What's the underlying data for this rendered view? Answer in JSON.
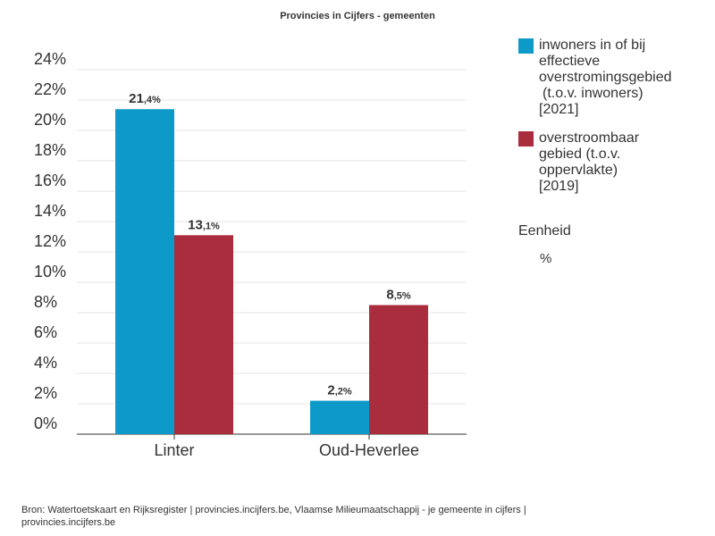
{
  "chart_data": {
    "type": "bar",
    "title": "Provincies in Cijfers - gemeenten",
    "categories": [
      "Linter",
      "Oud-Heverlee"
    ],
    "series": [
      {
        "name": "inwoners in of bij effectieve overstromingsgebied (t.o.v. inwoners) [2021]",
        "values": [
          21.4,
          2.2
        ],
        "labels": [
          "21,4%",
          "2,2%"
        ],
        "color": "#0e9ac9"
      },
      {
        "name": "overstroombaar gebied (t.o.v. oppervlakte) [2019]",
        "values": [
          13.1,
          8.5
        ],
        "labels": [
          "13,1%",
          "8,5%"
        ],
        "color": "#aa2d3e"
      }
    ],
    "ylim": [
      0,
      24
    ],
    "yticks": [
      "0%",
      "2%",
      "4%",
      "6%",
      "8%",
      "10%",
      "12%",
      "14%",
      "16%",
      "18%",
      "20%",
      "22%",
      "24%"
    ],
    "grid": true,
    "legend_position": "right",
    "xlabel": "",
    "ylabel": ""
  },
  "legend": {
    "items": [
      {
        "lines": [
          "inwoners in of bij",
          "effectieve",
          "overstromingsgebied",
          "(t.o.v. inwoners)",
          "[2021]"
        ],
        "color": "#0e9ac9"
      },
      {
        "lines": [
          "overstroombaar",
          "gebied (t.o.v.",
          "oppervlakte)",
          "[2019]"
        ],
        "color": "#aa2d3e"
      }
    ]
  },
  "unit": {
    "title": "Eenheid",
    "value": "%"
  },
  "source": "Bron: Watertoetskaart en Rijksregister | provincies.incijfers.be, Vlaamse Milieumaatschappij - je gemeente in cijfers | provincies.incijfers.be"
}
